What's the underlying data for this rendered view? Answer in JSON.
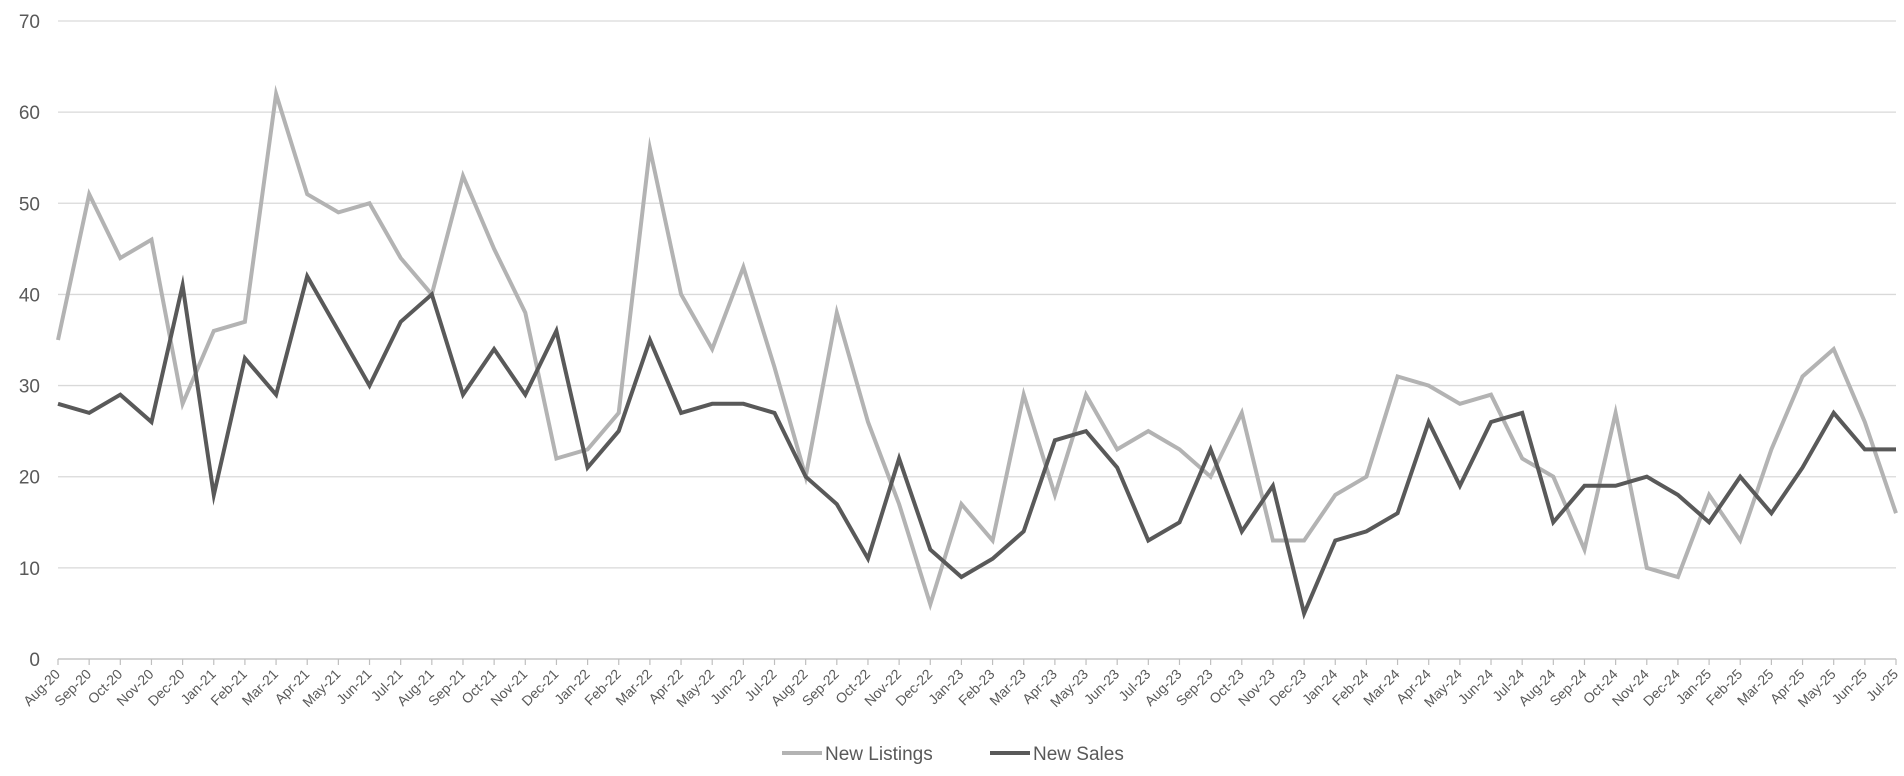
{
  "chart_data": {
    "type": "line",
    "title": "",
    "xlabel": "",
    "ylabel": "",
    "ylim": [
      0,
      70
    ],
    "yticks": [
      0,
      10,
      20,
      30,
      40,
      50,
      60,
      70
    ],
    "grid": true,
    "legend_position": "bottom-center",
    "categories": [
      "Aug-20",
      "Sep-20",
      "Oct-20",
      "Nov-20",
      "Dec-20",
      "Jan-21",
      "Feb-21",
      "Mar-21",
      "Apr-21",
      "May-21",
      "Jun-21",
      "Jul-21",
      "Aug-21",
      "Sep-21",
      "Oct-21",
      "Nov-21",
      "Dec-21",
      "Jan-22",
      "Feb-22",
      "Mar-22",
      "Apr-22",
      "May-22",
      "Jun-22",
      "Jul-22",
      "Aug-22",
      "Sep-22",
      "Oct-22",
      "Nov-22",
      "Dec-22",
      "Jan-23",
      "Feb-23",
      "Mar-23",
      "Apr-23",
      "May-23",
      "Jun-23",
      "Jul-23",
      "Aug-23",
      "Sep-23",
      "Oct-23",
      "Nov-23",
      "Dec-23",
      "Jan-24",
      "Feb-24",
      "Mar-24",
      "Apr-24",
      "May-24",
      "Jun-24",
      "Jul-24",
      "Aug-24",
      "Sep-24",
      "Oct-24",
      "Nov-24",
      "Dec-24",
      "Jan-25",
      "Feb-25",
      "Mar-25",
      "Apr-25",
      "May-25",
      "Jun-25",
      "Jul-25"
    ],
    "series": [
      {
        "name": "New Listings",
        "color": "#b3b3b3",
        "values": [
          35,
          51,
          44,
          46,
          28,
          36,
          37,
          62,
          51,
          49,
          50,
          44,
          40,
          53,
          45,
          38,
          22,
          23,
          27,
          56,
          40,
          34,
          43,
          32,
          20,
          38,
          26,
          17,
          6,
          17,
          13,
          29,
          18,
          29,
          23,
          25,
          23,
          20,
          27,
          13,
          13,
          18,
          20,
          31,
          30,
          28,
          29,
          22,
          20,
          12,
          27,
          10,
          9,
          18,
          13,
          23,
          31,
          34,
          26,
          16
        ]
      },
      {
        "name": "New Sales",
        "color": "#595959",
        "values": [
          28,
          27,
          29,
          26,
          41,
          18,
          33,
          29,
          42,
          36,
          30,
          37,
          40,
          29,
          34,
          29,
          36,
          21,
          25,
          35,
          27,
          28,
          28,
          27,
          20,
          17,
          11,
          22,
          12,
          9,
          11,
          14,
          24,
          25,
          21,
          13,
          15,
          23,
          14,
          19,
          5,
          13,
          14,
          16,
          26,
          19,
          26,
          27,
          15,
          19,
          19,
          20,
          18,
          15,
          20,
          16,
          21,
          27,
          23,
          23
        ]
      }
    ]
  }
}
